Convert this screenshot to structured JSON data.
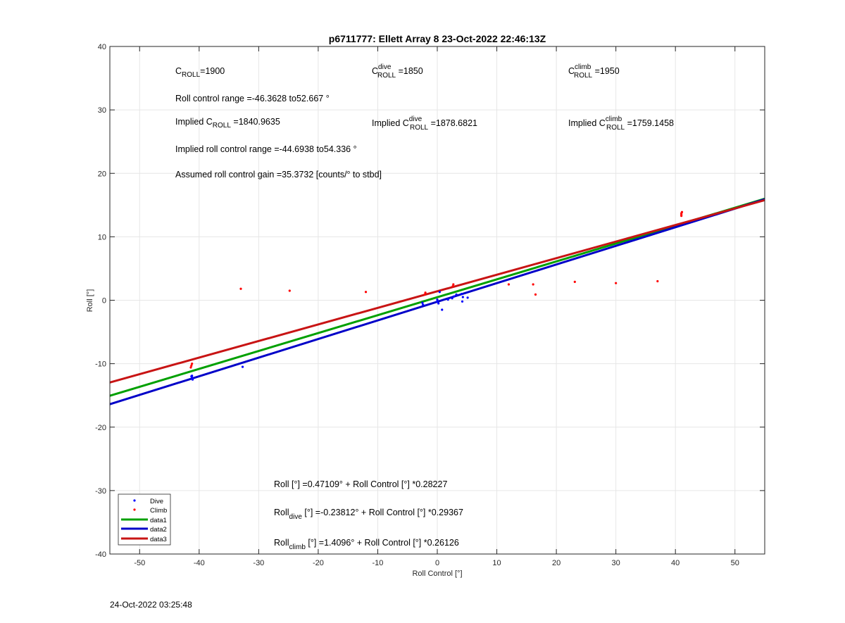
{
  "chart_data": {
    "type": "scatter",
    "title": "p6711777: Ellett Array 8 23-Oct-2022 22:46:13Z",
    "xlabel": "Roll Control [°]",
    "ylabel": "Roll [°]",
    "xlim": [
      -55,
      55
    ],
    "ylim": [
      -40,
      40
    ],
    "xticks": [
      -50,
      -40,
      -30,
      -20,
      -10,
      0,
      10,
      20,
      30,
      40,
      50
    ],
    "yticks": [
      -40,
      -30,
      -20,
      -10,
      0,
      10,
      20,
      30,
      40
    ],
    "grid": true,
    "legend_position": "bottom-left",
    "series": [
      {
        "name": "Dive",
        "kind": "points",
        "color": "#0000ff",
        "points": [
          [
            -41.2,
            -11.9
          ],
          [
            -41.2,
            -12.2
          ],
          [
            -41.1,
            -12.5
          ],
          [
            -41.3,
            -12.0
          ],
          [
            -41.1,
            -12.4
          ],
          [
            -32.7,
            -10.5
          ],
          [
            -2.5,
            -0.4
          ],
          [
            -2.4,
            -0.7
          ],
          [
            0.0,
            -0.2
          ],
          [
            0.0,
            0.1
          ],
          [
            0.2,
            -0.5
          ],
          [
            0.4,
            1.3
          ],
          [
            0.8,
            -1.5
          ],
          [
            2.5,
            0.3
          ],
          [
            2.8,
            0.6
          ],
          [
            3.2,
            0.9
          ],
          [
            4.2,
            -0.2
          ],
          [
            4.3,
            0.5
          ],
          [
            4.1,
            1.0
          ],
          [
            5.1,
            0.4
          ],
          [
            1.8,
            0.1
          ]
        ]
      },
      {
        "name": "Climb",
        "kind": "points",
        "color": "#ff0000",
        "points": [
          [
            -41.3,
            -10.3
          ],
          [
            -41.2,
            -10.0
          ],
          [
            -41.4,
            -10.6
          ],
          [
            -33.0,
            1.8
          ],
          [
            -24.8,
            1.5
          ],
          [
            -12.0,
            1.3
          ],
          [
            -2.1,
            0.9
          ],
          [
            -2.0,
            1.2
          ],
          [
            2.6,
            2.2
          ],
          [
            2.7,
            2.5
          ],
          [
            12.0,
            2.5
          ],
          [
            16.1,
            2.5
          ],
          [
            16.5,
            0.9
          ],
          [
            23.1,
            2.9
          ],
          [
            30.0,
            2.7
          ],
          [
            37.0,
            3.0
          ],
          [
            41.0,
            13.3
          ],
          [
            41.0,
            13.7
          ],
          [
            41.1,
            13.9
          ],
          [
            41.0,
            13.5
          ]
        ]
      },
      {
        "name": "data1",
        "kind": "line",
        "color": "#00a000",
        "intercept": 0.47109,
        "slope": 0.28227
      },
      {
        "name": "data2",
        "kind": "line",
        "color": "#0000c8",
        "intercept": -0.23812,
        "slope": 0.29367
      },
      {
        "name": "data3",
        "kind": "line",
        "color": "#c81414",
        "intercept": 1.4096,
        "slope": 0.26126
      }
    ],
    "annotations": {
      "c_roll": {
        "base": "C",
        "sub": "ROLL",
        "value": "=1900"
      },
      "c_roll_dive": {
        "base": "C",
        "sup": "dive",
        "sub": "ROLL",
        "value": " =1850"
      },
      "c_roll_climb": {
        "base": "C",
        "sup": "climb",
        "sub": "ROLL",
        "value": " =1950"
      },
      "roll_control_range": "Roll control range =-46.3628 to52.667 °",
      "implied_c_roll": {
        "base": "Implied C",
        "sub": "ROLL",
        "value": " =1840.9635"
      },
      "implied_c_roll_dive": {
        "base": "Implied C",
        "sup": "dive",
        "sub": "ROLL",
        "value": " =1878.6821"
      },
      "implied_c_roll_climb": {
        "base": "Implied C",
        "sup": "climb",
        "sub": "ROLL",
        "value": " =1759.1458"
      },
      "implied_range": "Implied roll control range =-44.6938 to54.336 °",
      "gain": "Assumed roll control gain =35.3732 [counts/° to stbd]",
      "fit_all": "Roll [°] =0.47109° + Roll Control [°] *0.28227",
      "fit_dive": {
        "base": "Roll",
        "sub": "dive",
        "value": " [°] =-0.23812° + Roll Control [°] *0.29367"
      },
      "fit_climb": {
        "base": "Roll",
        "sub": "climb",
        "value": " [°] =1.4096° + Roll Control [°] *0.26126"
      }
    }
  },
  "footer": {
    "timestamp": "24-Oct-2022 03:25:48"
  }
}
